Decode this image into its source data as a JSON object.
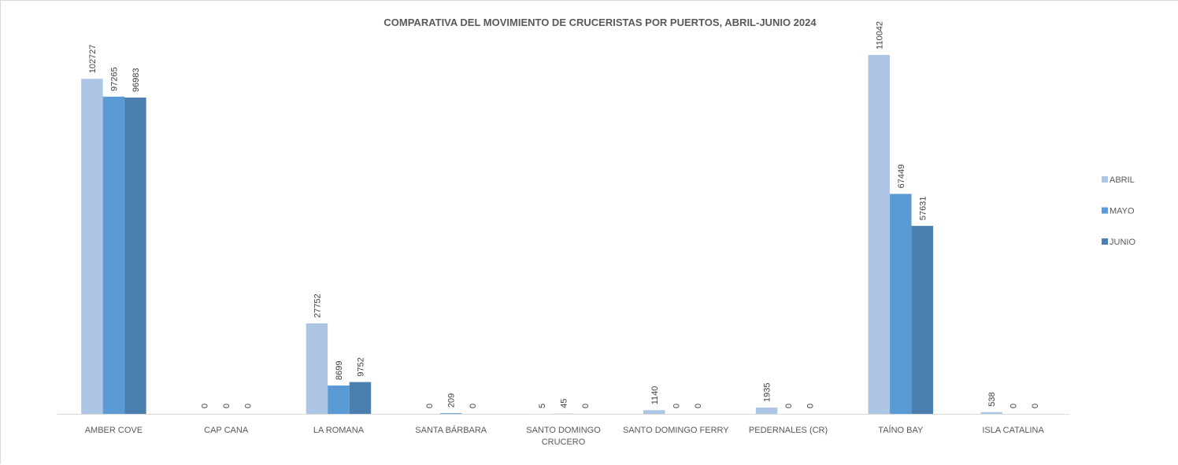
{
  "chart_data": {
    "type": "bar",
    "title": "COMPARATIVA DEL MOVIMIENTO DE CRUCERISTAS POR PUERTOS, ABRIL-JUNIO 2024",
    "xlabel": "",
    "ylabel": "",
    "categories": [
      [
        "AMBER COVE"
      ],
      [
        "CAP CANA"
      ],
      [
        "LA ROMANA"
      ],
      [
        "SANTA BÁRBARA"
      ],
      [
        "SANTO DOMINGO",
        "CRUCERO"
      ],
      [
        "SANTO DOMINGO FERRY"
      ],
      [
        "PEDERNALES (CR)"
      ],
      [
        "TAÍNO BAY"
      ],
      [
        "ISLA CATALINA"
      ]
    ],
    "series": [
      {
        "name": "ABRIL",
        "color": "#adc6e5",
        "values": [
          102727,
          0,
          27752,
          0,
          5,
          1140,
          1935,
          110042,
          538
        ]
      },
      {
        "name": "MAYO",
        "color": "#5b9bd5",
        "values": [
          97265,
          0,
          8699,
          209,
          45,
          0,
          0,
          67449,
          0
        ]
      },
      {
        "name": "JUNIO",
        "color": "#4a7fb0",
        "values": [
          96983,
          0,
          9752,
          0,
          0,
          0,
          0,
          57631,
          0
        ]
      }
    ],
    "ylim": [
      0,
      117000
    ],
    "grid": false,
    "legend_position": "right",
    "data_labels": true
  }
}
